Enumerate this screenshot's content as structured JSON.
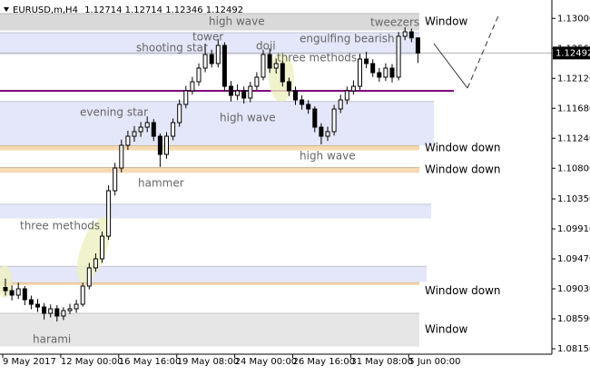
{
  "chart_data": {
    "type": "candlestick",
    "title": "EURUSD,m,H4",
    "categories": [
      "9 May 2017",
      null,
      null,
      null,
      null,
      null,
      null,
      null,
      null,
      "12 May 00:00",
      null,
      null,
      null,
      null,
      null,
      null,
      null,
      null,
      "16 May 16:00",
      null,
      null,
      null,
      null,
      null,
      null,
      null,
      null,
      "19 May 08:00",
      null,
      null,
      null,
      null,
      null,
      null,
      null,
      null,
      "24 May 00:00",
      null,
      null,
      null,
      null,
      null,
      null,
      null,
      null,
      "26 May 16:00",
      null,
      null,
      null,
      null,
      null,
      null,
      null,
      null,
      "31 May 08:00",
      null,
      null,
      null,
      null,
      null,
      null,
      null,
      null,
      "5 Jun 00:00",
      null
    ],
    "open": [
      1.0905,
      1.09003,
      1.08937,
      1.0903,
      1.0887,
      1.08803,
      1.08763,
      1.0867,
      1.08737,
      1.0863,
      1.0871,
      1.08737,
      1.08803,
      1.0907,
      1.09337,
      1.0947,
      1.09803,
      1.1047,
      1.10803,
      1.11137,
      1.1127,
      1.11337,
      1.11403,
      1.1147,
      1.1127,
      1.11003,
      1.1127,
      1.1147,
      1.11737,
      1.11937,
      1.1207,
      1.1227,
      1.1247,
      1.12337,
      1.12603,
      1.12003,
      1.1187,
      1.11937,
      1.1183,
      1.12003,
      1.12137,
      1.1247,
      1.1227,
      1.12337,
      1.1207,
      1.11937,
      1.11803,
      1.11737,
      1.1167,
      1.11403,
      1.1127,
      1.11337,
      1.1167,
      1.11803,
      1.11937,
      1.12003,
      1.12403,
      1.12337,
      1.12203,
      1.12137,
      1.1227,
      1.12137,
      1.12737,
      1.12803,
      1.12714
    ],
    "high": [
      1.0918,
      1.0908,
      1.0912,
      1.0907,
      1.0893,
      1.0888,
      1.0882,
      1.088,
      1.0879,
      1.0876,
      1.0881,
      1.0887,
      1.0912,
      1.0941,
      1.0955,
      1.0987,
      1.1055,
      1.1088,
      1.1122,
      1.1135,
      1.1142,
      1.1148,
      1.1156,
      1.1152,
      1.1131,
      1.1133,
      1.1153,
      1.1181,
      1.1201,
      1.1214,
      1.1234,
      1.1263,
      1.1254,
      1.127,
      1.1265,
      1.1208,
      1.1203,
      1.12,
      1.1207,
      1.1221,
      1.1254,
      1.1256,
      1.1241,
      1.1238,
      1.1213,
      1.12,
      1.1187,
      1.118,
      1.1171,
      1.1146,
      1.1141,
      1.1173,
      1.1188,
      1.12,
      1.1209,
      1.1248,
      1.1251,
      1.124,
      1.1227,
      1.1234,
      1.1233,
      1.128,
      1.1287,
      1.1285,
      1.12714
    ],
    "low": [
      1.0893,
      1.0886,
      1.0888,
      1.0879,
      1.0873,
      1.0869,
      1.0858,
      1.0861,
      1.0855,
      1.0857,
      1.0866,
      1.0868,
      1.0877,
      1.0902,
      1.0928,
      1.0941,
      1.0975,
      1.104,
      1.1074,
      1.1107,
      1.1119,
      1.1126,
      1.1133,
      1.112,
      1.1082,
      1.1094,
      1.1121,
      1.1141,
      1.1168,
      1.1188,
      1.1201,
      1.1221,
      1.1228,
      1.1228,
      1.1193,
      1.1178,
      1.118,
      1.1175,
      1.1177,
      1.1195,
      1.1209,
      1.122,
      1.1219,
      1.12,
      1.1186,
      1.1173,
      1.1166,
      1.116,
      1.1133,
      1.1115,
      1.112,
      1.1128,
      1.1161,
      1.1174,
      1.1188,
      1.1195,
      1.1227,
      1.1214,
      1.1207,
      1.1208,
      1.1206,
      1.1209,
      1.1268,
      1.1265,
      1.12346
    ],
    "close": [
      1.09003,
      1.08937,
      1.0903,
      1.0887,
      1.08803,
      1.08763,
      1.0867,
      1.08737,
      1.0863,
      1.0871,
      1.08737,
      1.08803,
      1.0907,
      1.09337,
      1.0947,
      1.09803,
      1.1047,
      1.10803,
      1.11137,
      1.1127,
      1.11337,
      1.11403,
      1.1147,
      1.1127,
      1.11003,
      1.1127,
      1.1147,
      1.11737,
      1.11937,
      1.1207,
      1.1227,
      1.1247,
      1.12337,
      1.12603,
      1.12003,
      1.1187,
      1.11937,
      1.1183,
      1.12003,
      1.12137,
      1.1247,
      1.1227,
      1.12337,
      1.1207,
      1.11937,
      1.11803,
      1.11737,
      1.1167,
      1.11403,
      1.1127,
      1.11337,
      1.1167,
      1.11803,
      1.11937,
      1.12003,
      1.12403,
      1.12337,
      1.12203,
      1.12137,
      1.1227,
      1.12137,
      1.12737,
      1.12803,
      1.12714,
      1.12492
    ],
    "bullish_color": "#ffffff",
    "bearish_color": "#000000",
    "ylim": [
      1.0807,
      1.1327
    ],
    "yticks": [
      {
        "value": 1.13,
        "label": "1.13000"
      },
      {
        "value": 1.1256,
        "label": "1.12560"
      },
      {
        "value": 1.1212,
        "label": "1.12120"
      },
      {
        "value": 1.1168,
        "label": "1.11680"
      },
      {
        "value": 1.1124,
        "label": "1.11240"
      },
      {
        "value": 1.108,
        "label": "1.10800"
      },
      {
        "value": 1.1035,
        "label": "1.10350"
      },
      {
        "value": 1.0991,
        "label": "1.09910"
      },
      {
        "value": 1.0947,
        "label": "1.09470"
      },
      {
        "value": 1.0903,
        "label": "1.09030"
      },
      {
        "value": 1.0859,
        "label": "1.08590"
      },
      {
        "value": 1.0815,
        "label": "1.08150"
      }
    ],
    "zones": [
      {
        "low": 1.1283,
        "high": 1.1307,
        "color": "#d9d9d9",
        "label": "Window",
        "label_color": "#8394b4"
      },
      {
        "low": 1.1247,
        "high": 1.1279,
        "color": "#e4e6f9"
      },
      {
        "low": 1.1114,
        "high": 1.1178,
        "color": "#e4e6f9"
      },
      {
        "low": 1.1107,
        "high": 1.1113,
        "color": "#f5dab2",
        "label": "Window down",
        "label_color": "#c8963c"
      },
      {
        "low": 1.1074,
        "high": 1.1081,
        "color": "#f5dab2",
        "label": "Window down",
        "label_color": "#c8963c"
      },
      {
        "low": 1.1007,
        "high": 1.1027,
        "color": "#e4e6f9"
      },
      {
        "low": 1.0914,
        "high": 1.0936,
        "color": "#e4e6f9"
      },
      {
        "low": 1.0909,
        "high": 1.0912,
        "color": "#f5dab2",
        "label": "Window down",
        "label_color": "#c8963c"
      },
      {
        "low": 1.0819,
        "high": 1.0867,
        "color": "#e6e6e6",
        "label": "Window",
        "label_color": "#8394b4"
      }
    ],
    "levels": [
      {
        "value": 1.11937,
        "color": "#800080"
      }
    ],
    "annotations": [
      "high wave",
      "tweezers",
      "tower",
      "doji",
      "shooting star",
      "engulfing bearish",
      "three methods",
      "evening star",
      "high wave",
      "high wave",
      "hammer",
      "three methods",
      "harami"
    ]
  }
}
